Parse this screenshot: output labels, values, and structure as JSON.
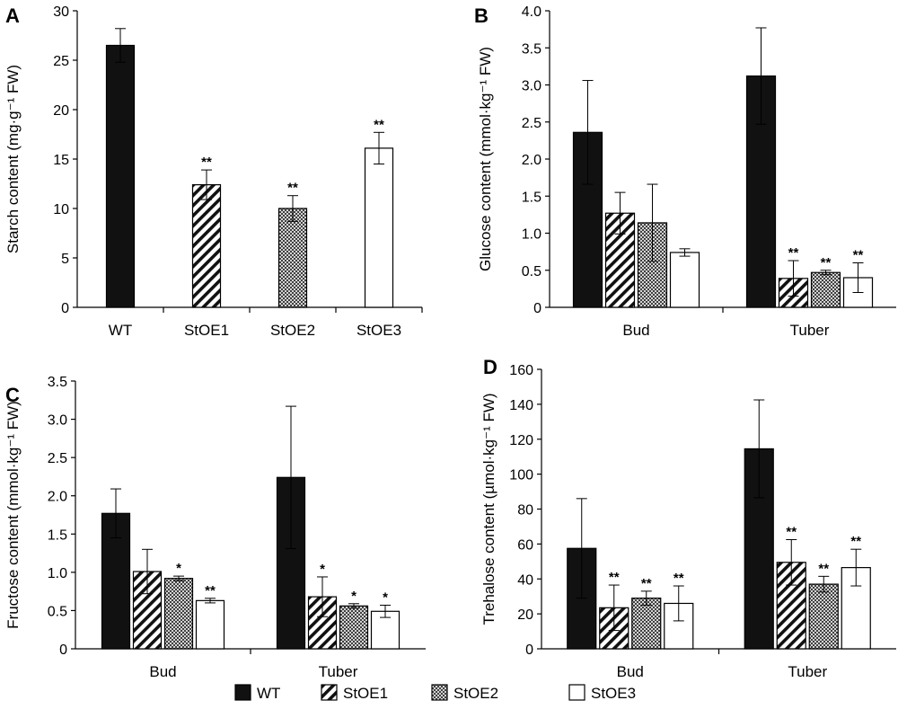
{
  "series_styles": [
    {
      "name": "WT",
      "fill": "#111111",
      "pattern": "solid"
    },
    {
      "name": "StOE1",
      "fill": "#ffffff",
      "pattern": "diagonal-stripes"
    },
    {
      "name": "StOE2",
      "fill": "#ffffff",
      "pattern": "crosshatch-dots"
    },
    {
      "name": "StOE3",
      "fill": "#ffffff",
      "pattern": "none"
    }
  ],
  "legend": {
    "position": "bottom-center",
    "entries": [
      "WT",
      "StOE1",
      "StOE2",
      "StOE3"
    ]
  },
  "chart_data": [
    {
      "panel": "A",
      "type": "bar",
      "ylabel": "Starch content (mg·g⁻¹ FW)",
      "ylim": [
        0,
        30
      ],
      "yticks": [
        0,
        5,
        10,
        15,
        20,
        25,
        30
      ],
      "yticklabels": [
        "0",
        "5",
        "10",
        "15",
        "20",
        "25",
        "30"
      ],
      "categories": [
        "WT",
        "StOE1",
        "StOE2",
        "StOE3"
      ],
      "series": [
        {
          "name": "WT",
          "values": [
            26.5,
            null,
            null,
            null
          ],
          "errors": [
            1.7,
            null,
            null,
            null
          ],
          "sig": [
            "",
            "",
            "",
            ""
          ]
        },
        {
          "name": "StOE1",
          "values": [
            null,
            12.4,
            null,
            null
          ],
          "errors": [
            null,
            1.5,
            null,
            null
          ],
          "sig": [
            "",
            "**",
            "",
            ""
          ]
        },
        {
          "name": "StOE2",
          "values": [
            null,
            null,
            10.0,
            null
          ],
          "errors": [
            null,
            null,
            1.3,
            null
          ],
          "sig": [
            "",
            "",
            "**",
            ""
          ]
        },
        {
          "name": "StOE3",
          "values": [
            null,
            null,
            null,
            16.1
          ],
          "errors": [
            null,
            null,
            null,
            1.6
          ],
          "sig": [
            "",
            "",
            "",
            "**"
          ]
        }
      ]
    },
    {
      "panel": "B",
      "type": "bar",
      "ylabel": "Glucose content (mmol·kg⁻¹ FW)",
      "ylim": [
        0,
        4.0
      ],
      "yticks": [
        0,
        0.5,
        1.0,
        1.5,
        2.0,
        2.5,
        3.0,
        3.5,
        4.0
      ],
      "yticklabels": [
        "0",
        "0.5",
        "1.0",
        "1.5",
        "2.0",
        "2.5",
        "3.0",
        "3.5",
        "4.0"
      ],
      "categories": [
        "Bud",
        "Tuber"
      ],
      "series": [
        {
          "name": "WT",
          "values": [
            2.36,
            3.12
          ],
          "errors": [
            0.7,
            0.65
          ],
          "sig": [
            "",
            ""
          ]
        },
        {
          "name": "StOE1",
          "values": [
            1.27,
            0.39
          ],
          "errors": [
            0.28,
            0.24
          ],
          "sig": [
            "",
            "**"
          ]
        },
        {
          "name": "StOE2",
          "values": [
            1.14,
            0.47
          ],
          "errors": [
            0.52,
            0.03
          ],
          "sig": [
            "",
            "**"
          ]
        },
        {
          "name": "StOE3",
          "values": [
            0.74,
            0.4
          ],
          "errors": [
            0.05,
            0.2
          ],
          "sig": [
            "",
            "**"
          ]
        }
      ]
    },
    {
      "panel": "C",
      "type": "bar",
      "ylabel": "Fructose content (mmol·kg⁻¹ FW)",
      "ylim": [
        0,
        3.5
      ],
      "yticks": [
        0,
        0.5,
        1.0,
        1.5,
        2.0,
        2.5,
        3.0,
        3.5
      ],
      "yticklabels": [
        "0",
        "0.5",
        "1.0",
        "1.5",
        "2.0",
        "2.5",
        "3.0",
        "3.5"
      ],
      "categories": [
        "Bud",
        "Tuber"
      ],
      "series": [
        {
          "name": "WT",
          "values": [
            1.77,
            2.24
          ],
          "errors": [
            0.32,
            0.93
          ],
          "sig": [
            "",
            ""
          ]
        },
        {
          "name": "StOE1",
          "values": [
            1.01,
            0.68
          ],
          "errors": [
            0.29,
            0.26
          ],
          "sig": [
            "",
            "*"
          ]
        },
        {
          "name": "StOE2",
          "values": [
            0.92,
            0.56
          ],
          "errors": [
            0.03,
            0.03
          ],
          "sig": [
            "*",
            "*"
          ]
        },
        {
          "name": "StOE3",
          "values": [
            0.63,
            0.49
          ],
          "errors": [
            0.03,
            0.08
          ],
          "sig": [
            "**",
            "*"
          ]
        }
      ]
    },
    {
      "panel": "D",
      "type": "bar",
      "ylabel": "Trehalose content (µmol·kg⁻¹ FW)",
      "ylim": [
        0,
        160
      ],
      "yticks": [
        0,
        20,
        40,
        60,
        80,
        100,
        120,
        140,
        160
      ],
      "yticklabels": [
        "0",
        "20",
        "40",
        "60",
        "80",
        "100",
        "120",
        "140",
        "160"
      ],
      "categories": [
        "Bud",
        "Tuber"
      ],
      "series": [
        {
          "name": "WT",
          "values": [
            57.5,
            114.5
          ],
          "errors": [
            28.5,
            28.0
          ],
          "sig": [
            "",
            ""
          ]
        },
        {
          "name": "StOE1",
          "values": [
            23.5,
            49.5
          ],
          "errors": [
            13.0,
            13.0
          ],
          "sig": [
            "**",
            "**"
          ]
        },
        {
          "name": "StOE2",
          "values": [
            29.0,
            37.0
          ],
          "errors": [
            4.0,
            4.5
          ],
          "sig": [
            "**",
            "**"
          ]
        },
        {
          "name": "StOE3",
          "values": [
            26.0,
            46.5
          ],
          "errors": [
            10.0,
            10.5
          ],
          "sig": [
            "**",
            "**"
          ]
        }
      ]
    }
  ]
}
